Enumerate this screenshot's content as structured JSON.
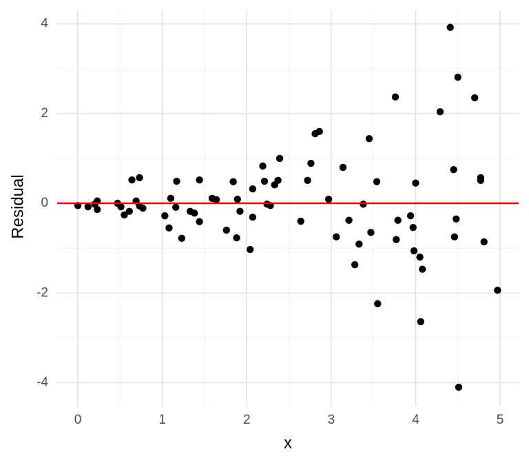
{
  "chart_data": {
    "type": "scatter",
    "x_label": "x",
    "y_label": "Residual",
    "xlim": [
      -0.245,
      5.22
    ],
    "ylim": [
      -4.53,
      4.3
    ],
    "xticks": [
      0,
      1,
      2,
      3,
      4,
      5
    ],
    "yticks": [
      -4,
      -2,
      0,
      2,
      4
    ],
    "grid": true,
    "hline": {
      "value": 0,
      "color": "#ff0000"
    },
    "series": [
      {
        "color": "#000000",
        "x": [
          0.0,
          0.12,
          0.2,
          0.23,
          0.23,
          0.47,
          0.51,
          0.55,
          0.61,
          0.64,
          0.69,
          0.73,
          0.73,
          0.77,
          1.03,
          1.08,
          1.1,
          1.16,
          1.17,
          1.23,
          1.33,
          1.38,
          1.44,
          1.44,
          1.59,
          1.64,
          1.76,
          1.84,
          1.88,
          1.89,
          1.92,
          2.04,
          2.07,
          2.07,
          2.19,
          2.21,
          2.24,
          2.28,
          2.33,
          2.37,
          2.39,
          2.64,
          2.72,
          2.76,
          2.81,
          2.86,
          2.97,
          3.06,
          3.14,
          3.21,
          3.28,
          3.33,
          3.38,
          3.45,
          3.47,
          3.54,
          3.55,
          3.76,
          3.77,
          3.79,
          3.94,
          3.97,
          3.98,
          4.0,
          4.05,
          4.06,
          4.08,
          4.29,
          4.41,
          4.45,
          4.46,
          4.48,
          4.5,
          4.51,
          4.7,
          4.77,
          4.77,
          4.81,
          4.97
        ],
        "values": [
          -0.05,
          -0.08,
          -0.02,
          0.05,
          -0.14,
          0.0,
          -0.08,
          -0.26,
          -0.18,
          0.52,
          0.05,
          0.57,
          -0.06,
          -0.11,
          -0.28,
          -0.55,
          0.11,
          -0.09,
          0.49,
          -0.78,
          -0.18,
          -0.22,
          -0.41,
          0.52,
          0.11,
          0.08,
          -0.6,
          0.48,
          -0.77,
          0.09,
          -0.18,
          -1.03,
          -0.31,
          0.32,
          0.83,
          0.49,
          -0.02,
          -0.05,
          0.41,
          0.51,
          1.0,
          -0.4,
          0.51,
          0.89,
          1.55,
          1.6,
          0.09,
          -0.75,
          0.8,
          -0.38,
          -1.37,
          -0.91,
          -0.02,
          1.44,
          -0.65,
          0.48,
          -2.24,
          2.37,
          -0.81,
          -0.38,
          -0.28,
          -0.54,
          -1.06,
          0.45,
          -1.2,
          -2.64,
          -1.47,
          2.04,
          3.92,
          0.75,
          -0.75,
          -0.35,
          2.81,
          -4.1,
          2.35,
          0.57,
          0.51,
          -0.86,
          -1.94
        ]
      }
    ]
  }
}
